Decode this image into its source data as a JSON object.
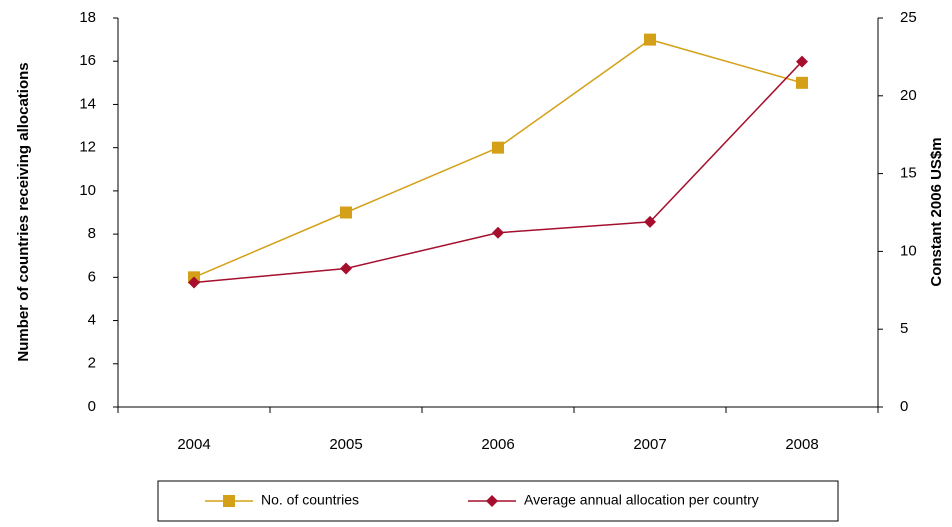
{
  "chart_data": {
    "type": "line",
    "categories": [
      "2004",
      "2005",
      "2006",
      "2007",
      "2008"
    ],
    "y_label": "Number of countries receiving allocations",
    "y2_label": "Constant 2006 US$m",
    "series": [
      {
        "name": "No. of countries",
        "color": "#d4a017",
        "marker": "square",
        "values": [
          6,
          9,
          12,
          17,
          15
        ]
      },
      {
        "name": "Average annual allocation per country",
        "color": "#a50f2d",
        "marker": "diamond",
        "axis": "y2",
        "values": [
          8.0,
          8.9,
          11.2,
          11.9,
          22.2
        ]
      }
    ],
    "ylim": [
      0,
      18
    ],
    "yticks": [
      0,
      2,
      4,
      6,
      8,
      10,
      12,
      14,
      16,
      18
    ],
    "y2lim": [
      0,
      25
    ],
    "y2ticks": [
      0,
      5,
      10,
      15,
      20,
      25
    ],
    "grid": false,
    "legend": "bottom"
  }
}
